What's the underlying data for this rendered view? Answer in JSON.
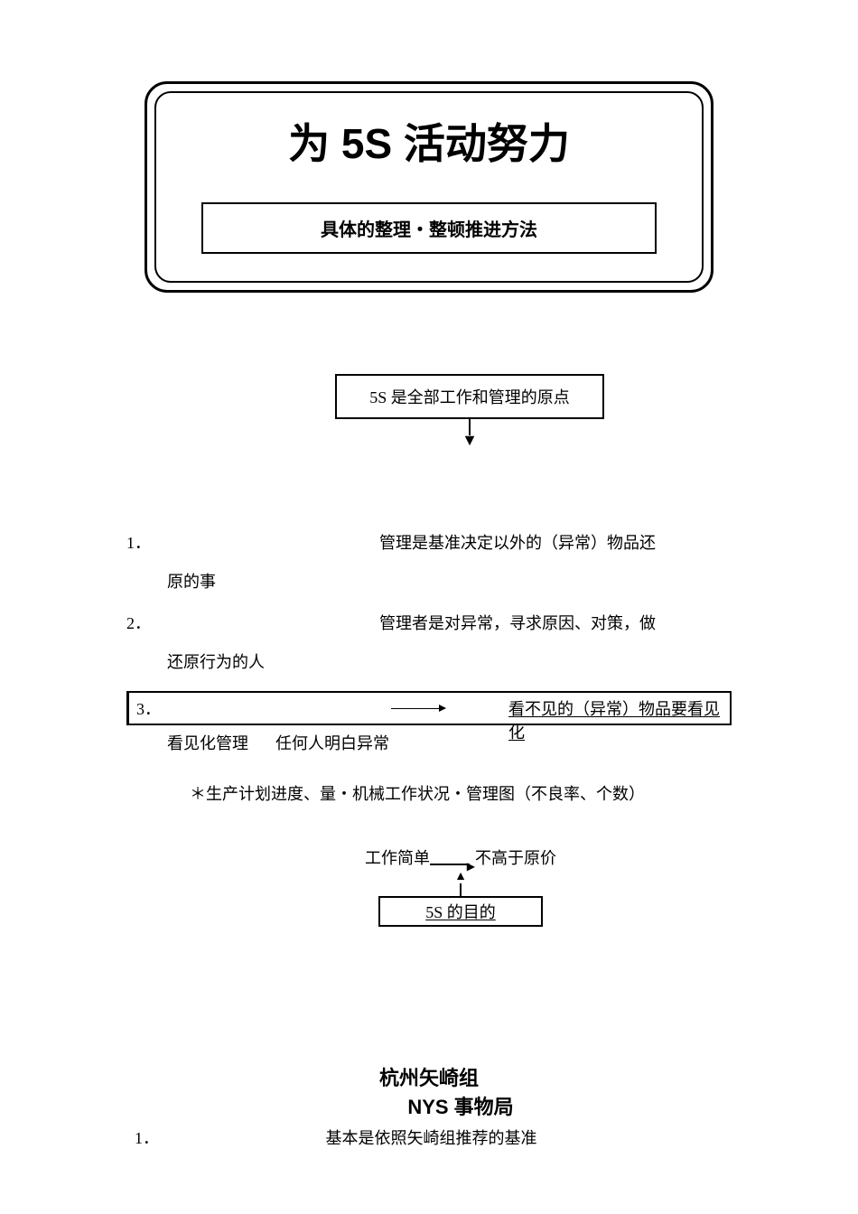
{
  "colors": {
    "text": "#000000",
    "background": "#ffffff",
    "border": "#000000"
  },
  "header": {
    "main_title": "为 5S 活动努力",
    "subtitle": "具体的整理・整顿推进方法"
  },
  "principle_statement": "5S 是全部工作和管理的原点",
  "principles": [
    {
      "num": "1．",
      "right_text": "管理是基准决定以外的（异常）物品还",
      "indent_text": "原的事"
    },
    {
      "num": "2．",
      "right_text": "管理者是对异常，寻求原因、对策，做",
      "indent_text": "还原行为的人"
    }
  ],
  "row3": {
    "num": "3．",
    "right_text": "看不见的（异常）物品要看见化"
  },
  "viz_management": {
    "label1": "看见化管理",
    "label2": "任何人明白异常"
  },
  "production_note": "＊生产计划进度、量・机械工作状况・管理图（不良率、个数）",
  "goal": {
    "left": "工作简单",
    "right": "不高于原价",
    "box": "5S 的目的"
  },
  "footer": {
    "org": "杭州矢崎组",
    "dept": "NYS 事物局",
    "row_num": "1．",
    "row_text": "基本是依照矢崎组推荐的基准"
  }
}
